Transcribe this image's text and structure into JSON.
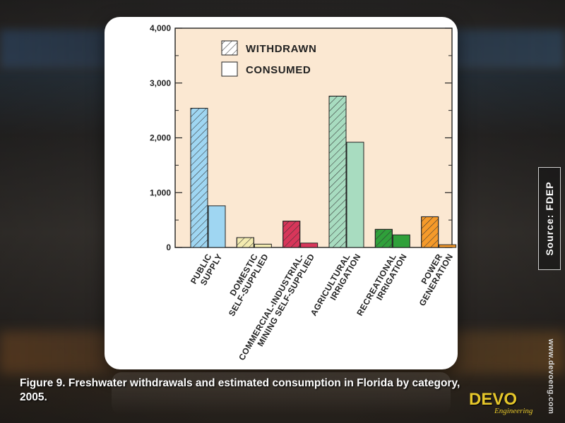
{
  "caption": "Figure 9. Freshwater  withdrawals and estimated consumption in Florida by category,  2005.",
  "source": "Source: FDEP",
  "website": "www.devoeng.com",
  "logo": {
    "main": "DEVO",
    "sub": "Engineering"
  },
  "colors": {
    "plot_bg": "#fbe8d2",
    "public_supply": "#9fd6f2",
    "domestic": "#f3ebb0",
    "commercial": "#d8365a",
    "agricultural": "#a8dcc0",
    "recreational": "#2fa03a",
    "power": "#f59a2a"
  },
  "chart_data": {
    "type": "bar",
    "title": "",
    "xlabel": "",
    "ylabel": "",
    "ylim": [
      0,
      4000
    ],
    "yticks": [
      "0",
      "1,000",
      "2,000",
      "3,000",
      "4,000"
    ],
    "legend_position": "top-left",
    "categories": [
      [
        "PUBLIC",
        "SUPPLY"
      ],
      [
        "DOMESTIC",
        "SELF-SUPPLIED"
      ],
      [
        "COMMERCIAL-INDUSTRIAL-",
        "MINING SELF-SUPPLIED"
      ],
      [
        "AGRICULTURAL",
        "IRRIGATION"
      ],
      [
        "RECREATIONAL",
        "IRRIGATION"
      ],
      [
        "POWER",
        "GENERATION"
      ]
    ],
    "series": [
      {
        "name": "WITHDRAWN",
        "pattern": "hatched",
        "values": [
          2540,
          180,
          480,
          2760,
          330,
          560
        ]
      },
      {
        "name": "CONSUMED",
        "pattern": "solid",
        "values": [
          760,
          60,
          80,
          1920,
          230,
          50
        ]
      }
    ]
  }
}
